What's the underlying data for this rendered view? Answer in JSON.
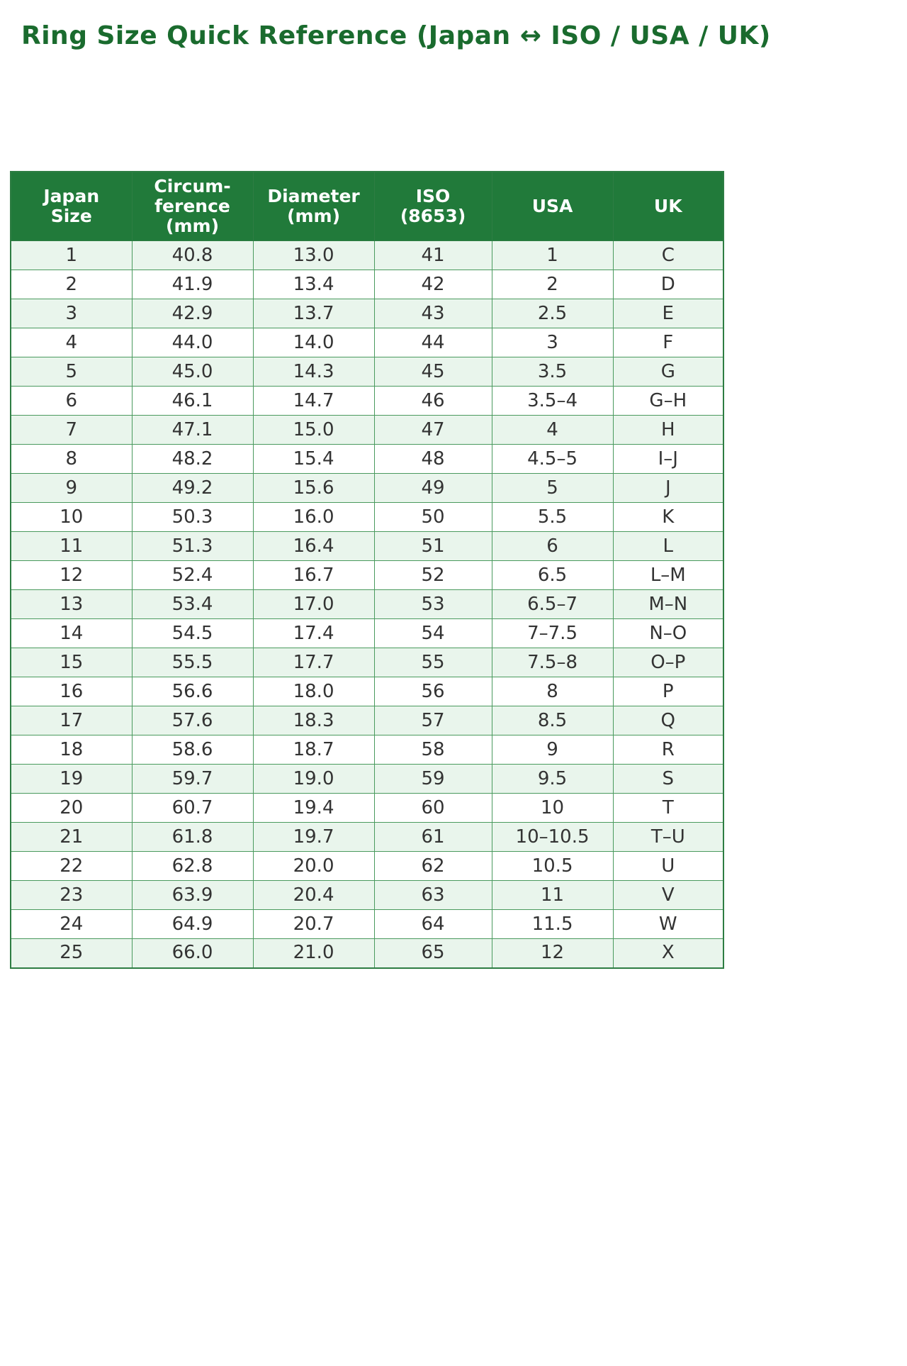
{
  "page_title": "Ring Size Quick Reference (Japan ↔ ISO / USA / UK)",
  "colors": {
    "title_green": "#1a6b2e",
    "header_bg": "#217a3a",
    "header_text": "#ffffff",
    "row_alt_bg": "#e9f5ec",
    "row_bg": "#ffffff",
    "border_green": "#4a9a5e",
    "cell_text": "#333333"
  },
  "chart_data": {
    "type": "table",
    "title": "Ring Size Quick Reference (Japan ↔ ISO / USA / UK)",
    "columns": [
      "Japan\nSize",
      "Circum-\nference\n(mm)",
      "Diameter\n(mm)",
      "ISO\n(8653)",
      "USA",
      "UK"
    ],
    "rows": [
      [
        "1",
        "40.8",
        "13.0",
        "41",
        "1",
        "C"
      ],
      [
        "2",
        "41.9",
        "13.4",
        "42",
        "2",
        "D"
      ],
      [
        "3",
        "42.9",
        "13.7",
        "43",
        "2.5",
        "E"
      ],
      [
        "4",
        "44.0",
        "14.0",
        "44",
        "3",
        "F"
      ],
      [
        "5",
        "45.0",
        "14.3",
        "45",
        "3.5",
        "G"
      ],
      [
        "6",
        "46.1",
        "14.7",
        "46",
        "3.5–4",
        "G–H"
      ],
      [
        "7",
        "47.1",
        "15.0",
        "47",
        "4",
        "H"
      ],
      [
        "8",
        "48.2",
        "15.4",
        "48",
        "4.5–5",
        "I–J"
      ],
      [
        "9",
        "49.2",
        "15.6",
        "49",
        "5",
        "J"
      ],
      [
        "10",
        "50.3",
        "16.0",
        "50",
        "5.5",
        "K"
      ],
      [
        "11",
        "51.3",
        "16.4",
        "51",
        "6",
        "L"
      ],
      [
        "12",
        "52.4",
        "16.7",
        "52",
        "6.5",
        "L–M"
      ],
      [
        "13",
        "53.4",
        "17.0",
        "53",
        "6.5–7",
        "M–N"
      ],
      [
        "14",
        "54.5",
        "17.4",
        "54",
        "7–7.5",
        "N–O"
      ],
      [
        "15",
        "55.5",
        "17.7",
        "55",
        "7.5–8",
        "O–P"
      ],
      [
        "16",
        "56.6",
        "18.0",
        "56",
        "8",
        "P"
      ],
      [
        "17",
        "57.6",
        "18.3",
        "57",
        "8.5",
        "Q"
      ],
      [
        "18",
        "58.6",
        "18.7",
        "58",
        "9",
        "R"
      ],
      [
        "19",
        "59.7",
        "19.0",
        "59",
        "9.5",
        "S"
      ],
      [
        "20",
        "60.7",
        "19.4",
        "60",
        "10",
        "T"
      ],
      [
        "21",
        "61.8",
        "19.7",
        "61",
        "10–10.5",
        "T–U"
      ],
      [
        "22",
        "62.8",
        "20.0",
        "62",
        "10.5",
        "U"
      ],
      [
        "23",
        "63.9",
        "20.4",
        "63",
        "11",
        "V"
      ],
      [
        "24",
        "64.9",
        "20.7",
        "64",
        "11.5",
        "W"
      ],
      [
        "25",
        "66.0",
        "21.0",
        "65",
        "12",
        "X"
      ]
    ]
  }
}
